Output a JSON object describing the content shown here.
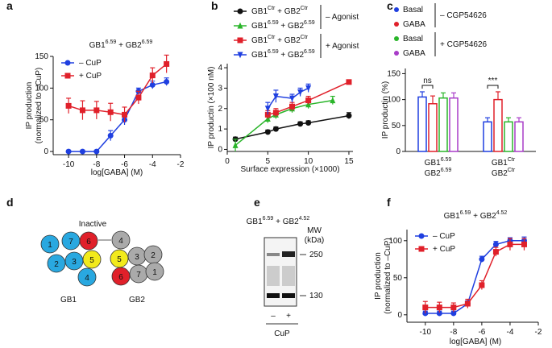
{
  "chart_data": [
    {
      "panel_label": "a",
      "type": "line",
      "title": "GB1^{6.59} + GB2^{6.59}",
      "xlabel": "log[GABA] (M)",
      "ylabel": [
        "IP production",
        "(normalized to –CuP)"
      ],
      "xlim": [
        -11.1,
        -2
      ],
      "ylim": [
        -5,
        150
      ],
      "xticks": [
        -10,
        -8,
        -6,
        -4,
        -2
      ],
      "yticks": [
        0,
        50,
        100,
        150
      ],
      "legend": "upper left",
      "series": [
        {
          "name": "– CuP",
          "color": "#1f3fe0",
          "marker": "circle",
          "x": [
            -10,
            -9,
            -8,
            -7,
            -6,
            -5,
            -4,
            -3
          ],
          "values": [
            0,
            0,
            0,
            25,
            50,
            95,
            105,
            110
          ],
          "errors": [
            2,
            2,
            2,
            8,
            8,
            5,
            6,
            6
          ]
        },
        {
          "name": "+ CuP",
          "color": "#e0202a",
          "marker": "square",
          "x": [
            -10,
            -9,
            -8,
            -7,
            -6,
            -5,
            -4,
            -3
          ],
          "values": [
            72,
            65,
            65,
            62,
            58,
            85,
            120,
            138
          ],
          "errors": [
            12,
            15,
            14,
            14,
            12,
            10,
            12,
            14
          ]
        }
      ]
    },
    {
      "panel_label": "b",
      "type": "scatter",
      "xlabel": "Surface expression (×1000)",
      "ylabel": [
        "IP productin (×100 nM)"
      ],
      "xlim": [
        0,
        15.5
      ],
      "ylim": [
        -0.1,
        4.2
      ],
      "xticks": [
        0,
        5,
        10,
        15
      ],
      "yticks": [
        0,
        1,
        2,
        3,
        4
      ],
      "legend_groups": [
        "– Agonist",
        "+ Agonist"
      ],
      "series": [
        {
          "name": "GB1^{Ctr} + GB2^{Ctr}",
          "color": "#111111",
          "marker": "circle",
          "x": [
            1,
            5,
            6,
            9,
            10,
            15
          ],
          "values": [
            0.5,
            0.85,
            1.0,
            1.25,
            1.3,
            1.65
          ],
          "errors": [
            0.1,
            0.1,
            0.1,
            0.1,
            0.1,
            0.15
          ]
        },
        {
          "name": "GB1^{6.59} + GB2^{6.59}",
          "color": "#2ab52a",
          "marker": "triangle-up",
          "x": [
            1,
            5,
            6,
            8,
            10,
            13
          ],
          "values": [
            0.2,
            1.5,
            1.7,
            2.0,
            2.2,
            2.4
          ],
          "errors": [
            0.3,
            0.2,
            0.2,
            0.2,
            0.2,
            0.2
          ]
        },
        {
          "name": "GB1^{Ctr} + GB2^{Ctr}",
          "color": "#e0202a",
          "marker": "square",
          "x": [
            5,
            6,
            8,
            10,
            15
          ],
          "values": [
            1.7,
            1.8,
            2.1,
            2.4,
            3.3
          ],
          "errors": [
            0.2,
            0.2,
            0.2,
            0.2,
            0.05
          ]
        },
        {
          "name": "GB1^{6.59} + GB2^{6.59}",
          "color": "#1f3fe0",
          "marker": "triangle-down",
          "x": [
            5,
            6,
            8,
            9,
            10
          ],
          "values": [
            2.0,
            2.6,
            2.5,
            2.8,
            3.0
          ],
          "errors": [
            0.3,
            0.3,
            0.2,
            0.2,
            0.2
          ]
        }
      ]
    },
    {
      "panel_label": "c",
      "type": "bar",
      "ylabel": [
        "IP productin (%)"
      ],
      "ylim": [
        0,
        160
      ],
      "yticks": [
        0,
        50,
        100,
        150
      ],
      "categories": [
        [
          "GB1^{6.59}",
          "GB2^{6.59}"
        ],
        [
          "GB1^{Ctr}",
          "GB2^{Ctr}"
        ]
      ],
      "legend_groups": [
        "– CGP54626",
        "+ CGP54626"
      ],
      "annotations": [
        "ns",
        "***"
      ],
      "series": [
        {
          "name": "Basal",
          "color": "#1f3fe0",
          "values": [
            105,
            57
          ],
          "errors": [
            10,
            8
          ]
        },
        {
          "name": "GABA",
          "color": "#e0202a",
          "values": [
            92,
            100
          ],
          "errors": [
            15,
            15
          ]
        },
        {
          "name": "Basal",
          "color": "#2ab52a",
          "values": [
            103,
            57
          ],
          "errors": [
            10,
            8
          ]
        },
        {
          "name": "GABA",
          "color": "#a83cc8",
          "values": [
            103,
            57
          ],
          "errors": [
            10,
            8
          ]
        }
      ]
    },
    {
      "panel_label": "f",
      "type": "line",
      "title": "GB1^{6.59} + GB2^{4.52}",
      "xlabel": "log[GABA] (M)",
      "ylabel": [
        "IP production",
        "(normalized to –CuP)"
      ],
      "xlim": [
        -11.3,
        -2
      ],
      "ylim": [
        -10,
        115
      ],
      "xticks": [
        -10,
        -8,
        -6,
        -4,
        -2
      ],
      "yticks": [
        0,
        50,
        100
      ],
      "legend": "upper left",
      "series": [
        {
          "name": "– CuP",
          "color": "#1f3fe0",
          "marker": "circle",
          "x": [
            -10,
            -9,
            -8,
            -7,
            -6,
            -5,
            -4,
            -3
          ],
          "values": [
            2,
            2,
            2,
            15,
            75,
            95,
            100,
            100
          ],
          "errors": [
            3,
            3,
            3,
            4,
            4,
            4,
            4,
            5
          ]
        },
        {
          "name": "+ CuP",
          "color": "#e0202a",
          "marker": "square",
          "x": [
            -10,
            -9,
            -8,
            -7,
            -6,
            -5,
            -4,
            -3
          ],
          "values": [
            10,
            10,
            10,
            15,
            40,
            85,
            95,
            95
          ],
          "errors": [
            8,
            7,
            6,
            6,
            6,
            6,
            8,
            8
          ]
        }
      ]
    }
  ],
  "diagram": {
    "panel_label": "d",
    "state": "Inactive",
    "gb1": {
      "label": "GB1",
      "nodes": [
        "1",
        "7",
        "6",
        "2",
        "3",
        "5",
        "4"
      ]
    },
    "gb2": {
      "label": "GB2",
      "nodes": [
        "4",
        "3",
        "2",
        "5",
        "6",
        "7",
        "1"
      ]
    }
  },
  "blot": {
    "panel_label": "e",
    "title": "GB1^{6.59} + GB2^{4.52}",
    "mw": [
      "MW",
      "(kDa)"
    ],
    "markers": [
      "250",
      "130"
    ],
    "lanes": [
      "–",
      "+"
    ],
    "treatment": "CuP"
  }
}
